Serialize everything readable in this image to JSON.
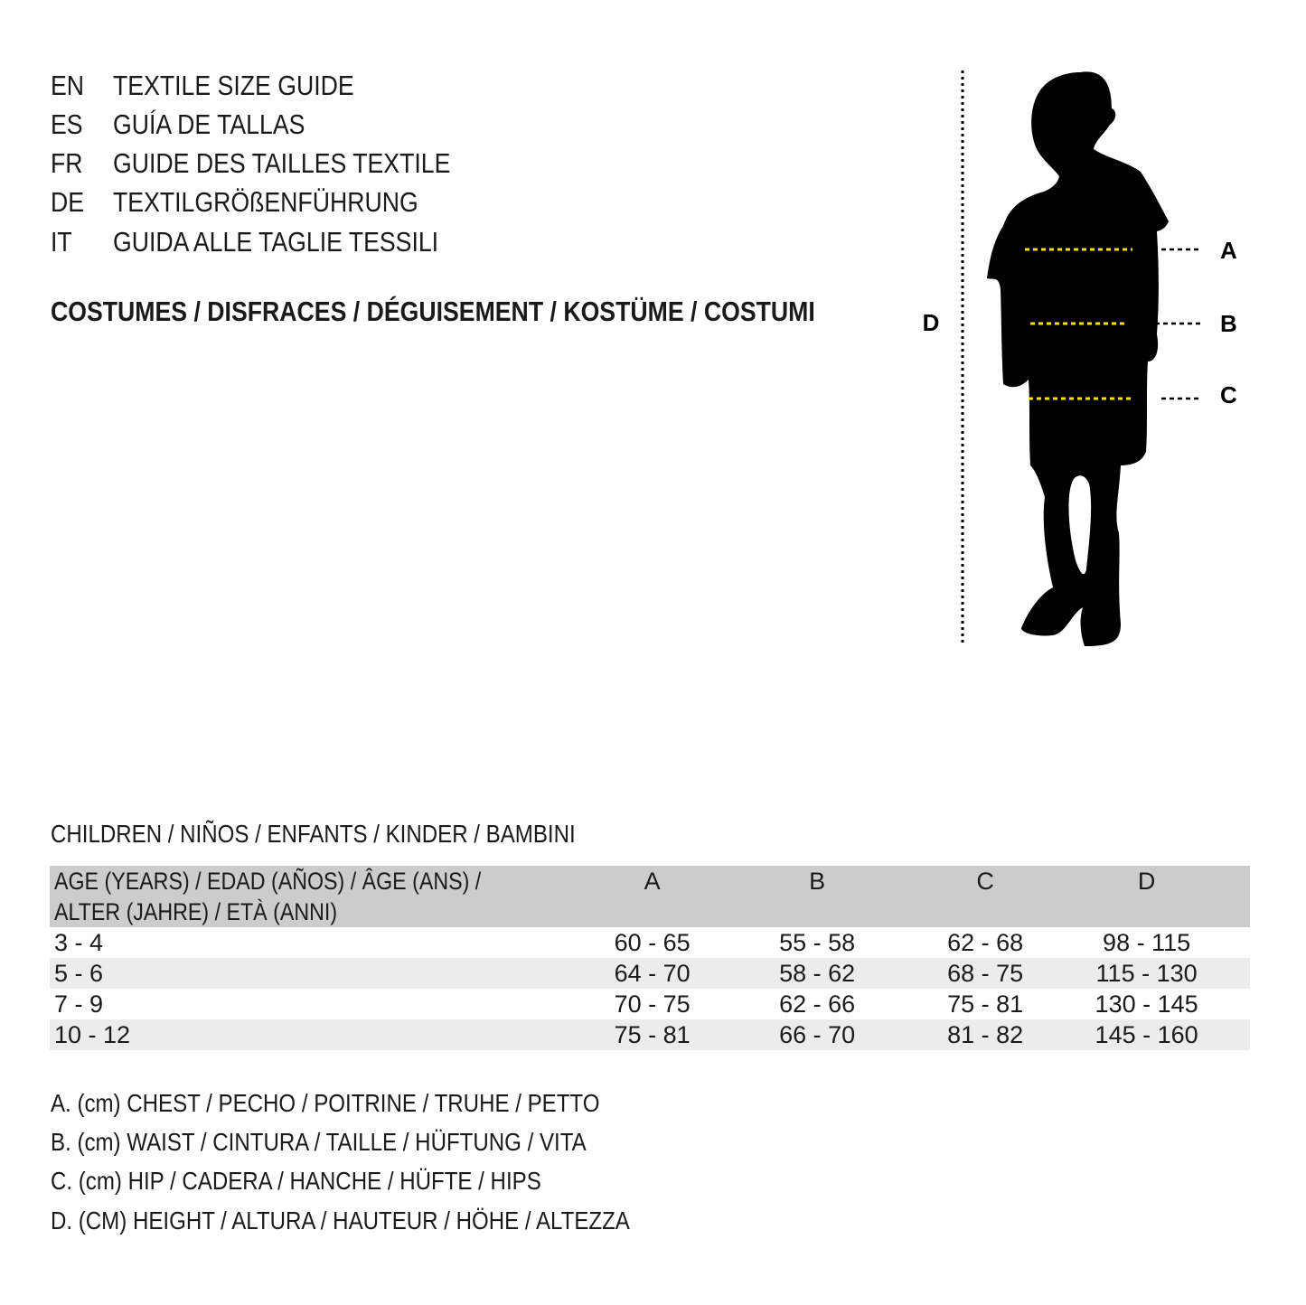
{
  "languages": [
    {
      "code": "EN",
      "title": "TEXTILE SIZE GUIDE"
    },
    {
      "code": "ES",
      "title": "GUÍA DE TALLAS"
    },
    {
      "code": "FR",
      "title": "GUIDE DES TAILLES TEXTILE"
    },
    {
      "code": "DE",
      "title": "TEXTILGRÖßENFÜHRUNG"
    },
    {
      "code": "IT",
      "title": "GUIDA ALLE TAGLIE TESSILI"
    }
  ],
  "subtitle": "COSTUMES / DISFRACES / DÉGUISEMENT / KOSTÜME / COSTUMI",
  "diagram": {
    "labels": {
      "a": "A",
      "b": "B",
      "c": "C",
      "d": "D"
    },
    "measure_line_color": "#f5e10a",
    "silhouette_color": "#000000"
  },
  "section_title": "CHILDREN / NIÑOS / ENFANTS / KINDER / BAMBINI",
  "table": {
    "header": {
      "age_line1": "AGE (YEARS) / EDAD (AÑOS) / ÂGE (ANS) /",
      "age_line2": "ALTER (JAHRE) / ETÀ (ANNI)",
      "cols": [
        "A",
        "B",
        "C",
        "D"
      ]
    },
    "rows": [
      {
        "age": "3 - 4",
        "values": [
          "60 - 65",
          "55 - 58",
          "62 - 68",
          "98 - 115"
        ]
      },
      {
        "age": "5 - 6",
        "values": [
          "64 - 70",
          "58 - 62",
          "68 - 75",
          "115 - 130"
        ]
      },
      {
        "age": "7 - 9",
        "values": [
          "70 - 75",
          "62 - 66",
          "75 - 81",
          "130 - 145"
        ]
      },
      {
        "age": "10 - 12",
        "values": [
          "75 - 81",
          "66 - 70",
          "81 - 82",
          "145 - 160"
        ]
      }
    ],
    "header_bg": "#cccccc",
    "stripe_bg": "#ececec"
  },
  "legend": [
    "A. (cm) CHEST / PECHO / POITRINE / TRUHE / PETTO",
    "B. (cm) WAIST / CINTURA / TAILLE / HÜFTUNG / VITA",
    "C. (cm) HIP / CADERA / HANCHE / HÜFTE / HIPS",
    "D. (CM) HEIGHT / ALTURA / HAUTEUR / HÖHE / ALTEZZA"
  ]
}
